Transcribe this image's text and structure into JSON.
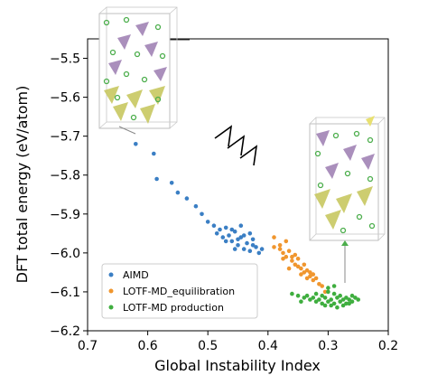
{
  "chart_data": {
    "type": "scatter",
    "xlabel": "Global Instability Index",
    "ylabel": "DFT total energy (eV/atom)",
    "xlim": [
      0.7,
      0.2
    ],
    "ylim": [
      -6.2,
      -5.45
    ],
    "x_inverted": true,
    "xticks": [
      "0.7",
      "0.6",
      "0.5",
      "0.4",
      "0.3",
      "0.2"
    ],
    "yticks": [
      "−5.5",
      "−5.6",
      "−5.7",
      "−5.8",
      "−5.9",
      "−6.0",
      "−6.1",
      "−6.2"
    ],
    "xtick_values": [
      0.7,
      0.6,
      0.5,
      0.4,
      0.3,
      0.2
    ],
    "ytick_values": [
      -5.5,
      -5.6,
      -5.7,
      -5.8,
      -5.9,
      -6.0,
      -6.1,
      -6.2
    ],
    "legend_position": "lower-left",
    "series": [
      {
        "name": "AIMD",
        "color": "#3b7fc4",
        "points": [
          [
            0.62,
            -5.72
          ],
          [
            0.59,
            -5.745
          ],
          [
            0.585,
            -5.81
          ],
          [
            0.56,
            -5.82
          ],
          [
            0.55,
            -5.845
          ],
          [
            0.535,
            -5.86
          ],
          [
            0.52,
            -5.88
          ],
          [
            0.51,
            -5.9
          ],
          [
            0.5,
            -5.92
          ],
          [
            0.49,
            -5.93
          ],
          [
            0.485,
            -5.95
          ],
          [
            0.48,
            -5.94
          ],
          [
            0.475,
            -5.96
          ],
          [
            0.47,
            -5.935
          ],
          [
            0.465,
            -5.955
          ],
          [
            0.46,
            -5.97
          ],
          [
            0.455,
            -5.945
          ],
          [
            0.45,
            -5.98
          ],
          [
            0.445,
            -5.96
          ],
          [
            0.44,
            -5.99
          ],
          [
            0.435,
            -5.975
          ],
          [
            0.43,
            -5.995
          ],
          [
            0.425,
            -5.965
          ],
          [
            0.42,
            -5.985
          ],
          [
            0.415,
            -6.0
          ],
          [
            0.41,
            -5.99
          ],
          [
            0.445,
            -5.93
          ],
          [
            0.43,
            -5.95
          ],
          [
            0.47,
            -5.97
          ],
          [
            0.455,
            -5.99
          ],
          [
            0.44,
            -5.955
          ],
          [
            0.425,
            -5.98
          ],
          [
            0.46,
            -5.94
          ],
          [
            0.45,
            -5.965
          ]
        ]
      },
      {
        "name": "LOTF-MD_equilibration",
        "color": "#f0962e",
        "points": [
          [
            0.39,
            -5.96
          ],
          [
            0.38,
            -5.99
          ],
          [
            0.375,
            -6.0
          ],
          [
            0.37,
            -6.01
          ],
          [
            0.365,
            -5.995
          ],
          [
            0.36,
            -6.02
          ],
          [
            0.355,
            -6.03
          ],
          [
            0.35,
            -6.015
          ],
          [
            0.345,
            -6.04
          ],
          [
            0.34,
            -6.05
          ],
          [
            0.335,
            -6.045
          ],
          [
            0.33,
            -6.06
          ],
          [
            0.325,
            -6.07
          ],
          [
            0.32,
            -6.065
          ],
          [
            0.315,
            -6.08
          ],
          [
            0.31,
            -6.085
          ],
          [
            0.305,
            -6.1
          ],
          [
            0.36,
            -6.01
          ],
          [
            0.35,
            -6.035
          ],
          [
            0.34,
            -6.03
          ],
          [
            0.33,
            -6.05
          ],
          [
            0.375,
            -6.015
          ],
          [
            0.365,
            -6.04
          ],
          [
            0.355,
            -6.005
          ],
          [
            0.345,
            -6.055
          ],
          [
            0.335,
            -6.065
          ],
          [
            0.325,
            -6.055
          ],
          [
            0.38,
            -5.98
          ],
          [
            0.37,
            -5.97
          ],
          [
            0.39,
            -5.985
          ]
        ]
      },
      {
        "name": "LOTF-MD  production",
        "color": "#3fae3f",
        "points": [
          [
            0.36,
            -6.105
          ],
          [
            0.35,
            -6.11
          ],
          [
            0.34,
            -6.115
          ],
          [
            0.335,
            -6.11
          ],
          [
            0.33,
            -6.12
          ],
          [
            0.325,
            -6.115
          ],
          [
            0.32,
            -6.125
          ],
          [
            0.315,
            -6.12
          ],
          [
            0.31,
            -6.13
          ],
          [
            0.305,
            -6.115
          ],
          [
            0.3,
            -6.125
          ],
          [
            0.295,
            -6.12
          ],
          [
            0.29,
            -6.13
          ],
          [
            0.285,
            -6.115
          ],
          [
            0.28,
            -6.125
          ],
          [
            0.275,
            -6.12
          ],
          [
            0.27,
            -6.13
          ],
          [
            0.265,
            -6.12
          ],
          [
            0.26,
            -6.125
          ],
          [
            0.255,
            -6.115
          ],
          [
            0.25,
            -6.12
          ],
          [
            0.3,
            -6.1
          ],
          [
            0.29,
            -6.105
          ],
          [
            0.28,
            -6.11
          ],
          [
            0.31,
            -6.11
          ],
          [
            0.32,
            -6.105
          ],
          [
            0.295,
            -6.135
          ],
          [
            0.285,
            -6.14
          ],
          [
            0.27,
            -6.115
          ],
          [
            0.26,
            -6.11
          ],
          [
            0.3,
            -6.09
          ],
          [
            0.29,
            -6.085
          ],
          [
            0.275,
            -6.135
          ],
          [
            0.305,
            -6.135
          ],
          [
            0.265,
            -6.13
          ],
          [
            0.345,
            -6.125
          ]
        ]
      }
    ]
  },
  "annotation_colors": {
    "axis": "#000000",
    "structure_frame": "#bfbfbf",
    "ring_marker": "#4cae4c",
    "tetra_purple": "#9b7bb0",
    "tetra_yellow": "#c8c860",
    "callout_line": "#333333"
  }
}
